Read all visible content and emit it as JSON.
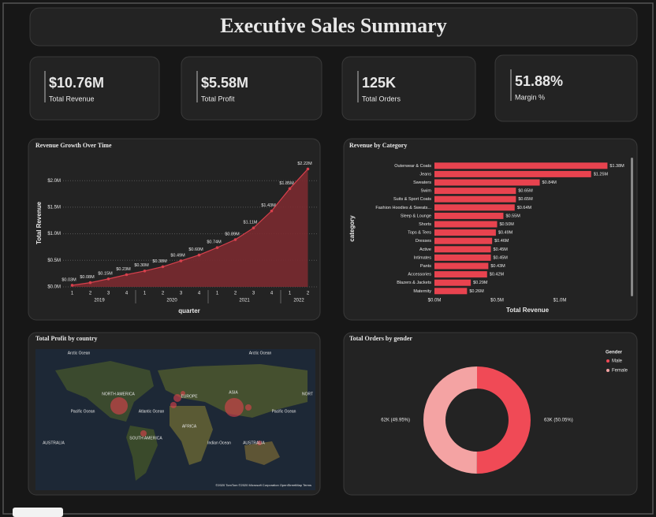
{
  "header": {
    "title": "Executive Sales Summary"
  },
  "kpis": [
    {
      "value": "$10.76M",
      "label": "Total Revenue"
    },
    {
      "value": "$5.58M",
      "label": "Total Profit"
    },
    {
      "value": "125K",
      "label": "Total Orders"
    },
    {
      "value": "51.88%",
      "label": "Margin %"
    }
  ],
  "map": {
    "title": "Total Profit by country",
    "labels": [
      "Arctic Ocean",
      "Arctic Ocean",
      "NORTH AMERICA",
      "EUROPE",
      "ASIA",
      "NORT",
      "Pacific Ocean",
      "Atlantic Ocean",
      "Pacific Ocean",
      "AFRICA",
      "SOUTH AMERICA",
      "AUSTRALIA",
      "Indian Ocean",
      "AUSTRALIA"
    ],
    "attribution": "©2020 TomTom ©2020 Microsoft Corporation OpenStreetMap Terms"
  },
  "chart_data": [
    {
      "type": "area",
      "title": "Revenue Growth Over Time",
      "x_label": "quarter",
      "y_label": "Total Revenue",
      "groups": [
        {
          "name": "2019",
          "quarters": [
            "1",
            "2",
            "3",
            "4"
          ]
        },
        {
          "name": "2020",
          "quarters": [
            "1",
            "2",
            "3",
            "4"
          ]
        },
        {
          "name": "2021",
          "quarters": [
            "1",
            "2",
            "3",
            "4"
          ]
        },
        {
          "name": "2022",
          "quarters": [
            "1",
            "2"
          ]
        }
      ],
      "values": [
        0.03,
        0.08,
        0.15,
        0.23,
        0.3,
        0.38,
        0.49,
        0.6,
        0.74,
        0.89,
        1.11,
        1.43,
        1.85,
        2.22
      ],
      "value_labels": [
        "$0.03M",
        "$0.08M",
        "$0.15M",
        "$0.23M",
        "$0.30M",
        "$0.38M",
        "$0.49M",
        "$0.60M",
        "$0.74M",
        "$0.89M",
        "$1.11M",
        "$1.43M",
        "$1.85M",
        "$2.22M"
      ],
      "color": "#d8404c",
      "fill": "#7a2a30",
      "ylim": [
        0,
        2.3
      ],
      "yticks": [
        {
          "value": 0,
          "label": "$0.0M"
        },
        {
          "value": 0.5,
          "label": "$0.5M"
        },
        {
          "value": 1,
          "label": "$1.0M"
        },
        {
          "value": 1.5,
          "label": "$1.5M"
        },
        {
          "value": 2,
          "label": "$2.0M"
        }
      ],
      "grid": true
    },
    {
      "type": "hbar",
      "title": "Revenue by Category",
      "x_label": "Total Revenue",
      "y_label": "category",
      "categories": [
        "Outerwear & Coats",
        "Jeans",
        "Sweaters",
        "Swim",
        "Suits & Sport Coats",
        "Fashion Hoodies & Sweats...",
        "Sleep & Lounge",
        "Shorts",
        "Tops & Tees",
        "Dresses",
        "Active",
        "Intimates",
        "Pants",
        "Accessories",
        "Blazers & Jackets",
        "Maternity"
      ],
      "values": [
        1.38,
        1.25,
        0.84,
        0.65,
        0.65,
        0.64,
        0.55,
        0.5,
        0.49,
        0.46,
        0.45,
        0.45,
        0.43,
        0.42,
        0.29,
        0.26
      ],
      "value_labels": [
        "$1.38M",
        "$1.25M",
        "$0.84M",
        "$0.65M",
        "$0.65M",
        "$0.64M",
        "$0.55M",
        "$0.50M",
        "$0.49M",
        "$0.46M",
        "$0.45M",
        "$0.45M",
        "$0.43M",
        "$0.42M",
        "$0.29M",
        "$0.26M"
      ],
      "color": "#e8434f",
      "xlim": [
        0,
        1.4
      ],
      "xticks": [
        {
          "value": 0,
          "label": "$0.0M"
        },
        {
          "value": 0.5,
          "label": "$0.5M"
        },
        {
          "value": 1,
          "label": "$1.0M"
        }
      ]
    },
    {
      "type": "donut",
      "title": "Total Orders by gender",
      "legend_title": "Gender",
      "legend": "top-right",
      "categories": [
        "Male",
        "Female"
      ],
      "values": [
        50.05,
        49.95
      ],
      "value_labels": [
        "63K (50.05%)",
        "62K (49.95%)"
      ],
      "colors": [
        "#f04a56",
        "#f4a3a3"
      ]
    }
  ]
}
